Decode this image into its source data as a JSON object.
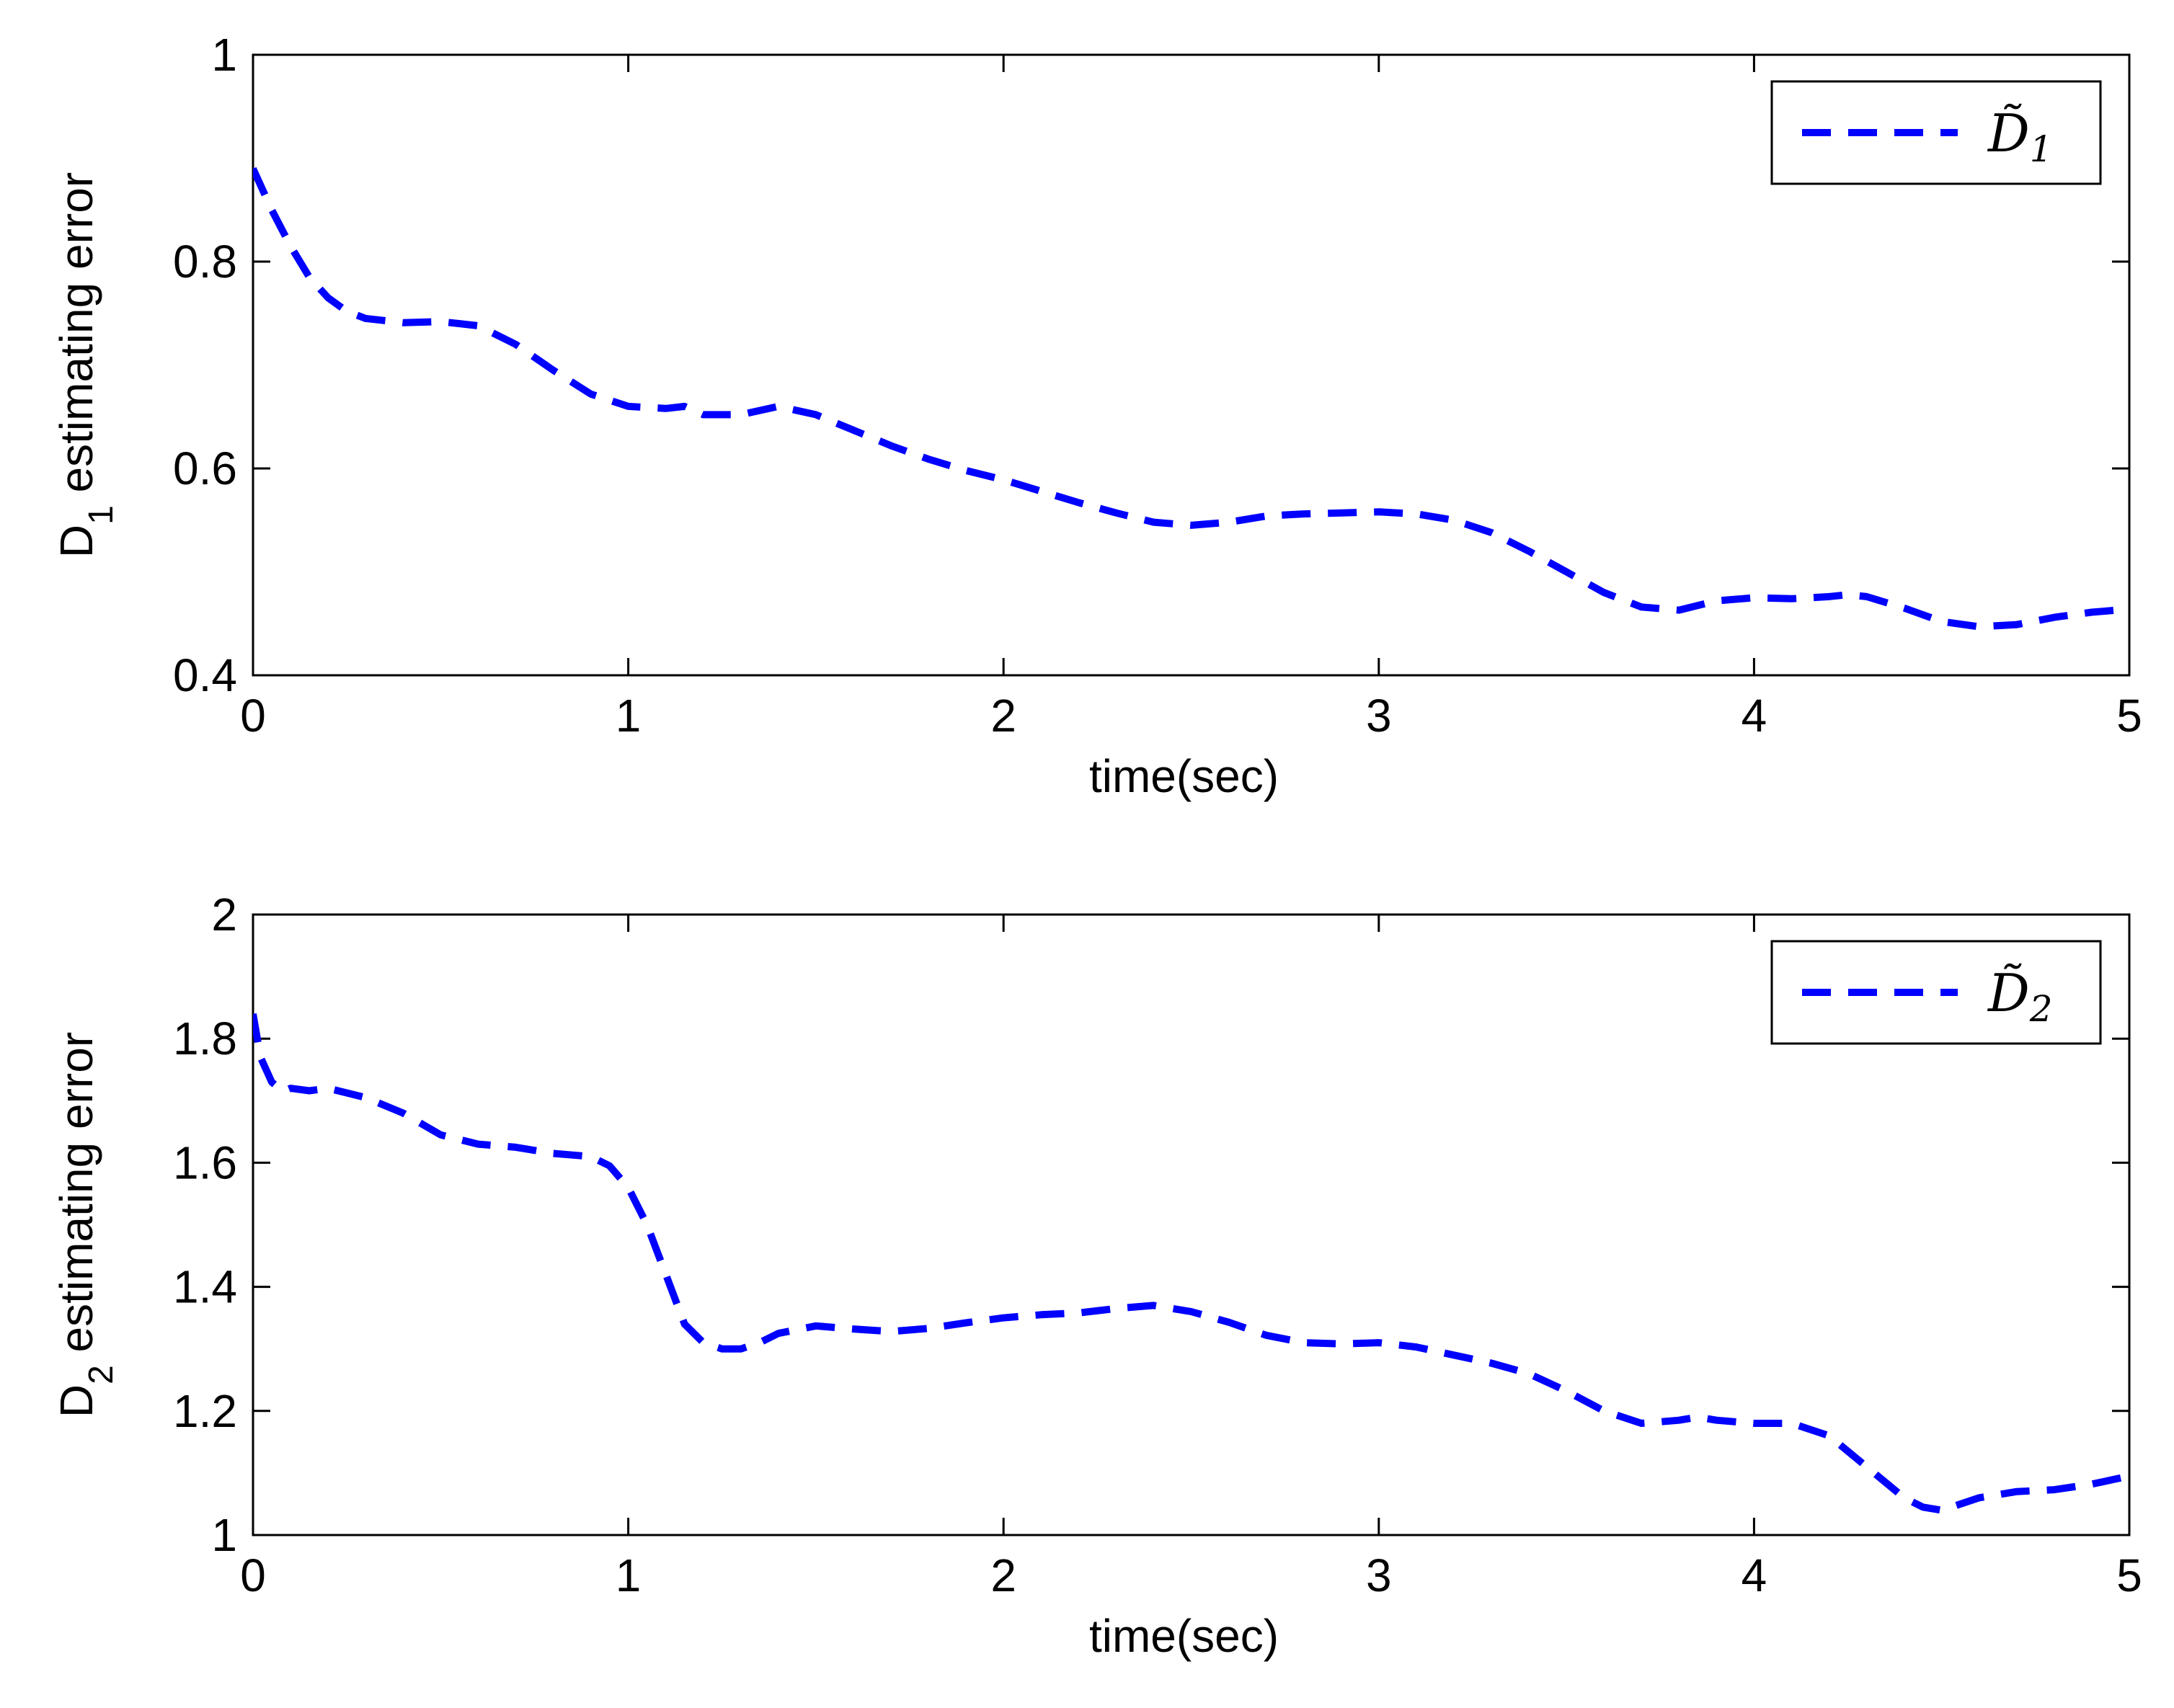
{
  "figure_title": "",
  "chart_data": [
    {
      "type": "line",
      "title": "",
      "xlabel": "time(sec)",
      "ylabel_main": "D",
      "ylabel_sub": "1",
      "ylabel_rest": " estimating error",
      "xlim": [
        0,
        5
      ],
      "ylim": [
        0.4,
        1
      ],
      "xticks": [
        0,
        1,
        2,
        3,
        4,
        5
      ],
      "xtick_labels": [
        "0",
        "1",
        "2",
        "3",
        "4",
        "5"
      ],
      "yticks": [
        0.4,
        0.6,
        0.8,
        1
      ],
      "ytick_labels": [
        "0.4",
        "0.6",
        "0.8",
        "1"
      ],
      "grid": false,
      "legend_position": "top-right",
      "series": [
        {
          "name": "D̃1",
          "legend_main": "D̃",
          "legend_sub": "1",
          "color": "#0000ff",
          "style": "dashed",
          "x": [
            0,
            0.05,
            0.1,
            0.15,
            0.2,
            0.25,
            0.3,
            0.4,
            0.5,
            0.6,
            0.7,
            0.8,
            0.9,
            1.0,
            1.1,
            1.15,
            1.2,
            1.3,
            1.4,
            1.5,
            1.6,
            1.7,
            1.8,
            1.9,
            2.0,
            2.1,
            2.2,
            2.3,
            2.4,
            2.5,
            2.6,
            2.7,
            2.8,
            2.9,
            3.0,
            3.1,
            3.2,
            3.3,
            3.4,
            3.5,
            3.6,
            3.7,
            3.8,
            3.9,
            4.0,
            4.1,
            4.2,
            4.25,
            4.3,
            4.4,
            4.5,
            4.6,
            4.7,
            4.8,
            4.9,
            5.0
          ],
          "y": [
            0.89,
            0.85,
            0.815,
            0.785,
            0.765,
            0.752,
            0.745,
            0.741,
            0.742,
            0.738,
            0.72,
            0.695,
            0.672,
            0.66,
            0.658,
            0.66,
            0.652,
            0.652,
            0.66,
            0.652,
            0.637,
            0.622,
            0.609,
            0.598,
            0.589,
            0.578,
            0.567,
            0.557,
            0.548,
            0.545,
            0.548,
            0.554,
            0.556,
            0.557,
            0.558,
            0.556,
            0.55,
            0.538,
            0.52,
            0.5,
            0.48,
            0.466,
            0.463,
            0.472,
            0.475,
            0.474,
            0.476,
            0.478,
            0.476,
            0.465,
            0.452,
            0.447,
            0.449,
            0.456,
            0.461,
            0.464
          ]
        }
      ]
    },
    {
      "type": "line",
      "title": "",
      "xlabel": "time(sec)",
      "ylabel_main": "D",
      "ylabel_sub": "2",
      "ylabel_rest": " estimating error",
      "xlim": [
        0,
        5
      ],
      "ylim": [
        1,
        2
      ],
      "xticks": [
        0,
        1,
        2,
        3,
        4,
        5
      ],
      "xtick_labels": [
        "0",
        "1",
        "2",
        "3",
        "4",
        "5"
      ],
      "yticks": [
        1,
        1.2,
        1.4,
        1.6,
        1.8,
        2
      ],
      "ytick_labels": [
        "1",
        "1.2",
        "1.4",
        "1.6",
        "1.8",
        "2"
      ],
      "grid": false,
      "legend_position": "top-right",
      "series": [
        {
          "name": "D̃2",
          "legend_main": "D̃",
          "legend_sub": "2",
          "color": "#0000ff",
          "style": "dashed",
          "x": [
            0,
            0.02,
            0.05,
            0.08,
            0.1,
            0.15,
            0.2,
            0.3,
            0.4,
            0.5,
            0.6,
            0.7,
            0.8,
            0.9,
            0.95,
            1.0,
            1.05,
            1.1,
            1.15,
            1.2,
            1.25,
            1.3,
            1.35,
            1.4,
            1.5,
            1.6,
            1.7,
            1.8,
            1.9,
            2.0,
            2.1,
            2.2,
            2.3,
            2.4,
            2.5,
            2.6,
            2.7,
            2.8,
            2.9,
            3.0,
            3.1,
            3.2,
            3.3,
            3.4,
            3.5,
            3.6,
            3.7,
            3.8,
            3.85,
            3.9,
            4.0,
            4.1,
            4.2,
            4.3,
            4.4,
            4.45,
            4.5,
            4.6,
            4.7,
            4.8,
            4.9,
            5.0
          ],
          "y": [
            1.84,
            1.77,
            1.73,
            1.715,
            1.72,
            1.716,
            1.72,
            1.705,
            1.68,
            1.645,
            1.63,
            1.625,
            1.615,
            1.61,
            1.595,
            1.56,
            1.5,
            1.42,
            1.34,
            1.31,
            1.3,
            1.3,
            1.31,
            1.325,
            1.337,
            1.332,
            1.328,
            1.333,
            1.342,
            1.35,
            1.355,
            1.358,
            1.365,
            1.37,
            1.36,
            1.343,
            1.322,
            1.31,
            1.308,
            1.31,
            1.303,
            1.29,
            1.277,
            1.26,
            1.232,
            1.2,
            1.18,
            1.185,
            1.19,
            1.185,
            1.18,
            1.18,
            1.16,
            1.11,
            1.06,
            1.045,
            1.04,
            1.06,
            1.07,
            1.073,
            1.082,
            1.095
          ]
        }
      ]
    }
  ]
}
